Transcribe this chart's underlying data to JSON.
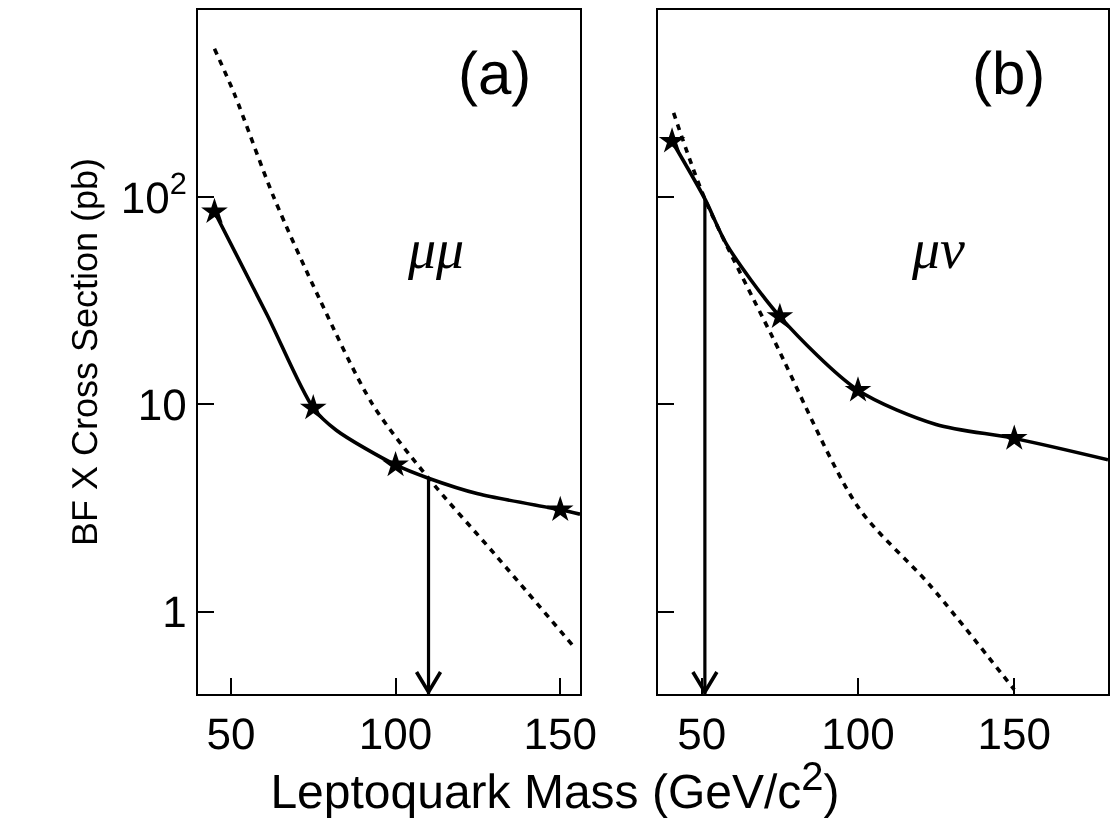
{
  "chart_data": [
    {
      "type": "line",
      "ylabel": "BF X Cross Section (pb)",
      "xlabel": "Leptoquark Mass (GeV/c$^{2}$)",
      "log": "y",
      "xlim": [
        40,
        156
      ],
      "xticks": [
        50,
        100,
        150
      ],
      "ylim": [
        0.4,
        800
      ],
      "yticks": [
        1,
        10,
        {
          "value": 100,
          "label": "10$^{2}$"
        }
      ],
      "grid": false,
      "annotations": [
        "(a)",
        "μμ"
      ],
      "ref_lines": [
        {
          "axis": "x",
          "value": 110
        }
      ],
      "series": [
        {
          "color": "#000000",
          "line_style": "solid",
          "marker": "none",
          "x": [
            45,
            61,
            75,
            82,
            100,
            110,
            125,
            150,
            156
          ],
          "values": [
            85,
            27,
            9.6,
            7.5,
            5.1,
            4.4,
            3.7,
            3.1,
            2.95
          ]
        },
        {
          "type": "scatter",
          "color": "#000000",
          "marker": "star",
          "x": [
            45,
            75,
            100,
            150
          ],
          "values": [
            85,
            9.6,
            5.1,
            3.1
          ]
        },
        {
          "color": "#000000",
          "line_style": "dotted",
          "marker": "none",
          "x": [
            45,
            51,
            63,
            77,
            93,
            110,
            130,
            154
          ],
          "values": [
            520,
            316,
            100,
            32,
            10,
            4.4,
            1.9,
            0.68
          ]
        }
      ]
    },
    {
      "type": "line",
      "log": "y",
      "xlim": [
        36,
        180
      ],
      "xticks": [
        50,
        100,
        150
      ],
      "ylim": [
        0.4,
        800
      ],
      "yticks": [
        1,
        10,
        100
      ],
      "tick_labels": "x",
      "grid": false,
      "annotations": [
        "(b)",
        "μν"
      ],
      "ref_lines": [
        {
          "axis": "x",
          "value": 51
        }
      ],
      "series": [
        {
          "color": "#000000",
          "line_style": "solid",
          "marker": "none",
          "x": [
            40.5,
            51,
            58,
            75,
            100,
            125,
            150,
            180
          ],
          "values": [
            186,
            98,
            59,
            26.5,
            11.7,
            8,
            6.85,
            5.4
          ]
        },
        {
          "type": "scatter",
          "color": "#000000",
          "marker": "star",
          "x": [
            40.5,
            75,
            100,
            150
          ],
          "values": [
            186,
            26.5,
            11.7,
            6.85
          ]
        },
        {
          "color": "#000000",
          "line_style": "dotted",
          "marker": "none",
          "x": [
            41,
            51,
            73,
            100,
            123,
            150
          ],
          "values": [
            255,
            98,
            20.6,
            3.2,
            1.34,
            0.42
          ]
        }
      ]
    }
  ]
}
